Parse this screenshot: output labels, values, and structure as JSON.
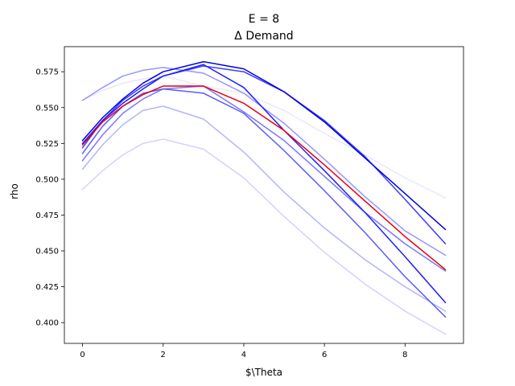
{
  "chart_data": {
    "type": "line",
    "title": "E = 8",
    "subtitle": "Δ Demand",
    "xlabel": "$\\Theta",
    "ylabel": "rho",
    "xlim": [
      -0.45,
      9.45
    ],
    "ylim": [
      0.3855,
      0.5925
    ],
    "grid": false,
    "legend": "none",
    "x": [
      0,
      0.5,
      1,
      1.5,
      2,
      3,
      4,
      5,
      6,
      7,
      8,
      9
    ],
    "xticks": [
      0,
      2,
      4,
      6,
      8
    ],
    "xtick_labels": [
      "0",
      "2",
      "4",
      "6",
      "8"
    ],
    "yticks": [
      0.4,
      0.425,
      0.45,
      0.475,
      0.5,
      0.525,
      0.55,
      0.575
    ],
    "ytick_labels": [
      "0.400",
      "0.425",
      "0.450",
      "0.475",
      "0.500",
      "0.525",
      "0.550",
      "0.575"
    ],
    "series": [
      {
        "color": "#e8e8ff",
        "values": [
          0.555,
          0.562,
          0.567,
          0.57,
          0.572,
          0.565,
          0.56,
          0.548,
          0.532,
          0.517,
          0.501,
          0.487
        ]
      },
      {
        "color": "#d2d2ff",
        "values": [
          0.493,
          0.506,
          0.517,
          0.525,
          0.528,
          0.521,
          0.501,
          0.474,
          0.449,
          0.427,
          0.408,
          0.392
        ]
      },
      {
        "color": "#b4b4ff",
        "values": [
          0.507,
          0.524,
          0.538,
          0.548,
          0.551,
          0.542,
          0.519,
          0.491,
          0.466,
          0.444,
          0.425,
          0.408
        ]
      },
      {
        "color": "#9696ff",
        "values": [
          0.555,
          0.564,
          0.572,
          0.576,
          0.578,
          0.574,
          0.56,
          0.539,
          0.514,
          0.488,
          0.464,
          0.447
        ]
      },
      {
        "color": "#7878ff",
        "values": [
          0.513,
          0.531,
          0.546,
          0.556,
          0.563,
          0.565,
          0.547,
          0.527,
          0.502,
          0.477,
          0.455,
          0.436
        ]
      },
      {
        "color": "#5a5aff",
        "values": [
          0.518,
          0.537,
          0.551,
          0.56,
          0.563,
          0.56,
          0.546,
          0.52,
          0.492,
          0.463,
          0.432,
          0.404
        ]
      },
      {
        "color": "#3c3cff",
        "values": [
          0.522,
          0.541,
          0.555,
          0.565,
          0.572,
          0.579,
          0.575,
          0.561,
          0.541,
          0.516,
          0.486,
          0.455
        ]
      },
      {
        "color": "#1e1eff",
        "values": [
          0.525,
          0.541,
          0.553,
          0.563,
          0.572,
          0.58,
          0.564,
          0.534,
          0.506,
          0.477,
          0.446,
          0.414
        ]
      },
      {
        "color": "#0000e6",
        "values": [
          0.527,
          0.543,
          0.556,
          0.567,
          0.575,
          0.582,
          0.577,
          0.561,
          0.54,
          0.515,
          0.49,
          0.465
        ]
      },
      {
        "color": "#e6000f",
        "values": [
          0.524,
          0.54,
          0.551,
          0.559,
          0.565,
          0.565,
          0.553,
          0.534,
          0.51,
          0.485,
          0.46,
          0.437
        ]
      }
    ]
  }
}
